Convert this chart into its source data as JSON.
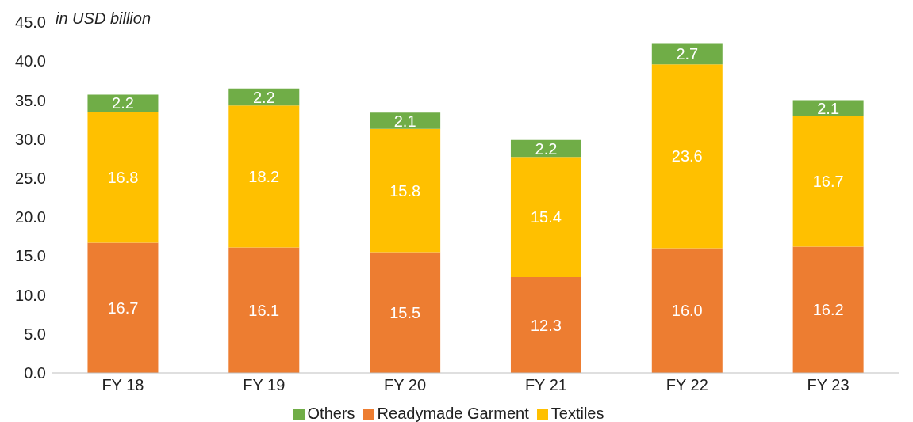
{
  "chart_data": {
    "type": "bar",
    "stacked": true,
    "ylabel": "in USD billion",
    "categories": [
      "FY 18",
      "FY 19",
      "FY 20",
      "FY 21",
      "FY 22",
      "FY 23"
    ],
    "series": [
      {
        "name": "Readymade Garment",
        "color": "#ed7d31",
        "values": [
          16.7,
          16.1,
          15.5,
          12.3,
          16.0,
          16.2
        ],
        "value_labels": [
          "16.7",
          "16.1",
          "15.5",
          "12.3",
          "16.0",
          "16.2"
        ]
      },
      {
        "name": "Textiles",
        "color": "#ffc000",
        "values": [
          16.8,
          18.2,
          15.8,
          15.4,
          23.6,
          16.7
        ],
        "value_labels": [
          "16.8",
          "18.2",
          "15.8",
          "15.4",
          "23.6",
          "16.7"
        ]
      },
      {
        "name": "Others",
        "color": "#70ad47",
        "values": [
          2.2,
          2.2,
          2.1,
          2.2,
          2.7,
          2.1
        ],
        "value_labels": [
          "2.2",
          "2.2",
          "2.1",
          "2.2",
          "2.7",
          "2.1"
        ]
      }
    ],
    "ylim": [
      0,
      45
    ],
    "yticks": [
      {
        "value": 0,
        "label": "0.0"
      },
      {
        "value": 5,
        "label": "5.0"
      },
      {
        "value": 10,
        "label": "10.0"
      },
      {
        "value": 15,
        "label": "15.0"
      },
      {
        "value": 20,
        "label": "20.0"
      },
      {
        "value": 25,
        "label": "25.0"
      },
      {
        "value": 30,
        "label": "30.0"
      },
      {
        "value": 35,
        "label": "35.0"
      },
      {
        "value": 40,
        "label": "40.0"
      },
      {
        "value": 45,
        "label": "45.0"
      }
    ],
    "grid": false,
    "legend": "bottom"
  }
}
